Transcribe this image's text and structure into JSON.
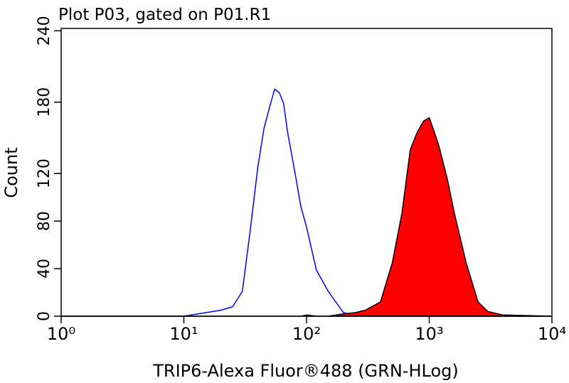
{
  "chart_data": {
    "type": "histogram_overlay",
    "title": "Plot P03, gated on P01.R1",
    "xlabel": "TRIP6-Alexa Fluor®488 (GRN-HLog)",
    "ylabel": "Count",
    "xscale": "log",
    "xlim": [
      1,
      10000
    ],
    "xticks": [
      {
        "value": 1,
        "label": "10⁰"
      },
      {
        "value": 10,
        "label": "10¹"
      },
      {
        "value": 100,
        "label": "10²"
      },
      {
        "value": 1000,
        "label": "10³"
      },
      {
        "value": 10000,
        "label": "10⁴"
      }
    ],
    "ylim": [
      0,
      242
    ],
    "yticks": [
      0,
      40,
      80,
      120,
      180,
      240
    ],
    "x": [
      1,
      10,
      15,
      20,
      25,
      30,
      35,
      40,
      45,
      50,
      55,
      60,
      65,
      70,
      80,
      90,
      100,
      120,
      150,
      200,
      250,
      300,
      400,
      500,
      600,
      700,
      800,
      900,
      1000,
      1100,
      1200,
      1400,
      1600,
      2000,
      2500,
      3000,
      4000,
      10000
    ],
    "series": [
      {
        "color": "#0000ff",
        "filled": false,
        "values": [
          0,
          0,
          3,
          5,
          8,
          21,
          75,
          125,
          158,
          176,
          191,
          188,
          179,
          155,
          122,
          92,
          75,
          39,
          21,
          3,
          1,
          0,
          0,
          0,
          0,
          0,
          0,
          0,
          0,
          0,
          0,
          0,
          0,
          0,
          0,
          0,
          0,
          0
        ]
      },
      {
        "color": "#ff0000",
        "filled": true,
        "values": [
          0,
          0,
          0,
          0,
          0,
          0,
          0,
          0,
          0,
          0,
          0,
          0,
          0,
          0,
          0,
          0,
          1,
          0,
          0,
          2,
          3,
          5,
          12,
          45,
          87,
          140,
          155,
          164,
          167,
          155,
          143,
          116,
          87,
          45,
          12,
          4,
          1,
          0
        ]
      }
    ]
  }
}
